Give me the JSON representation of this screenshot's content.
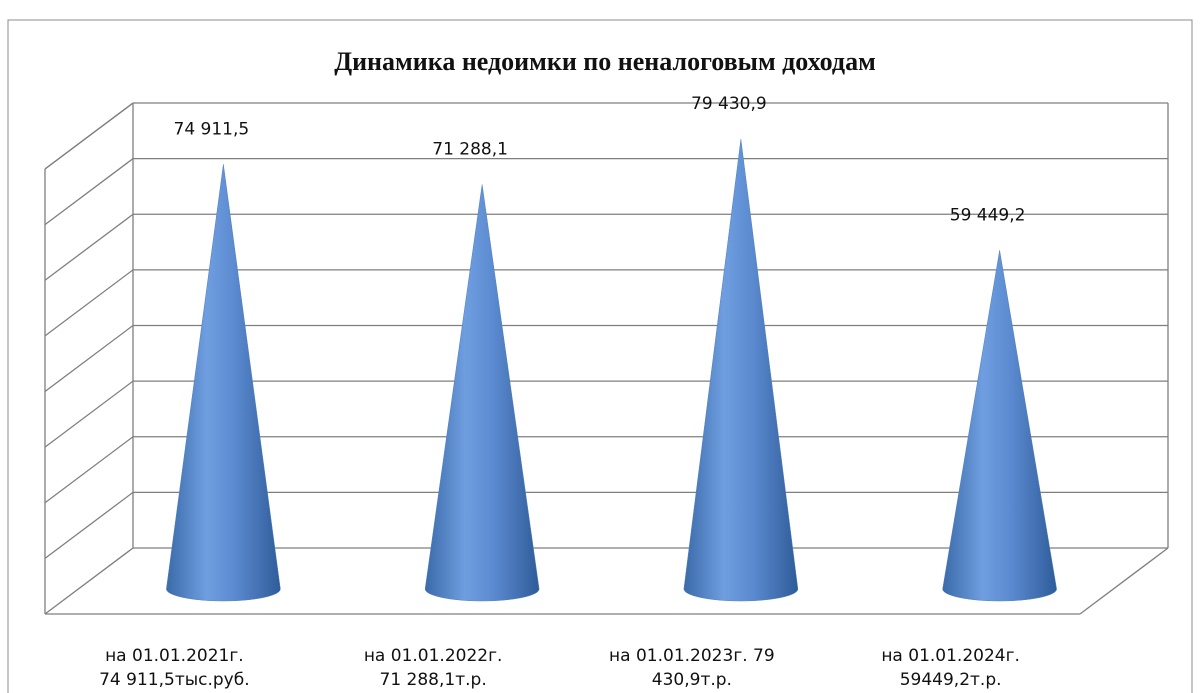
{
  "chart_data": {
    "type": "cone",
    "title": "Динамика недоимки по неналоговым доходам",
    "categories": [
      [
        "на 01.01.2021г.",
        "74 911,5тыс.руб."
      ],
      [
        "на 01.01.2022г.",
        "71 288,1т.р."
      ],
      [
        "на 01.01.2023г.     79",
        "430,9т.р."
      ],
      [
        "на 01.01.2024г.",
        "59449,2т.р."
      ]
    ],
    "values": [
      74911.5,
      71288.1,
      79430.9,
      59449.2
    ],
    "value_labels": [
      "74 911,5",
      "71 288,1",
      "79 430,9",
      "59 449,2"
    ],
    "color": "#4f81bd",
    "ylim": [
      0,
      80000
    ],
    "yticks": [
      0,
      10000,
      20000,
      30000,
      40000,
      50000,
      60000,
      70000,
      80000
    ],
    "grid": true
  }
}
